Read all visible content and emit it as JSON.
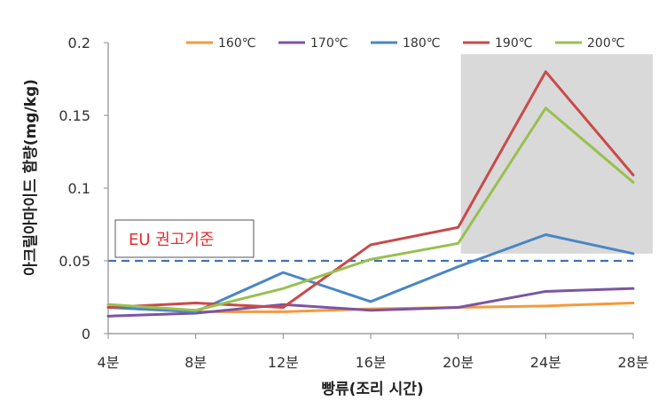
{
  "chart_data": {
    "type": "line",
    "categories": [
      "4분",
      "8분",
      "12분",
      "16분",
      "20분",
      "24분",
      "28분"
    ],
    "xlabel": "빵류(조리 시간)",
    "ylabel": "아크릴아마이드 함량(mg/kg)",
    "ylim": [
      0,
      0.2
    ],
    "yticks": [
      "0",
      "0.05",
      "0.1",
      "0.15",
      "0.2"
    ],
    "legend_position": "top-right",
    "series": [
      {
        "name": "160℃",
        "color": "#f59a3c",
        "values": [
          0.018,
          0.015,
          0.015,
          0.017,
          0.018,
          0.019,
          0.021
        ]
      },
      {
        "name": "170℃",
        "color": "#7b55a5",
        "values": [
          0.012,
          0.014,
          0.02,
          0.016,
          0.018,
          0.029,
          0.031
        ]
      },
      {
        "name": "180℃",
        "color": "#4a86c5",
        "values": [
          0.018,
          0.015,
          0.042,
          0.022,
          0.046,
          0.068,
          0.055
        ]
      },
      {
        "name": "190℃",
        "color": "#c94a4a",
        "values": [
          0.018,
          0.021,
          0.018,
          0.061,
          0.073,
          0.18,
          0.109
        ]
      },
      {
        "name": "200℃",
        "color": "#98c050",
        "values": [
          0.02,
          0.016,
          0.031,
          0.051,
          0.062,
          0.155,
          0.104
        ]
      }
    ],
    "reference_line": {
      "value": 0.05,
      "color": "#3f72b8"
    },
    "annotation": {
      "text": "EU 권고기준",
      "color": "#e03030"
    },
    "highlight_region": {
      "from_category": "20분",
      "to_category": "28분",
      "y_from": 0.055,
      "y_to": 0.192,
      "color": "#d9d9d9"
    }
  }
}
